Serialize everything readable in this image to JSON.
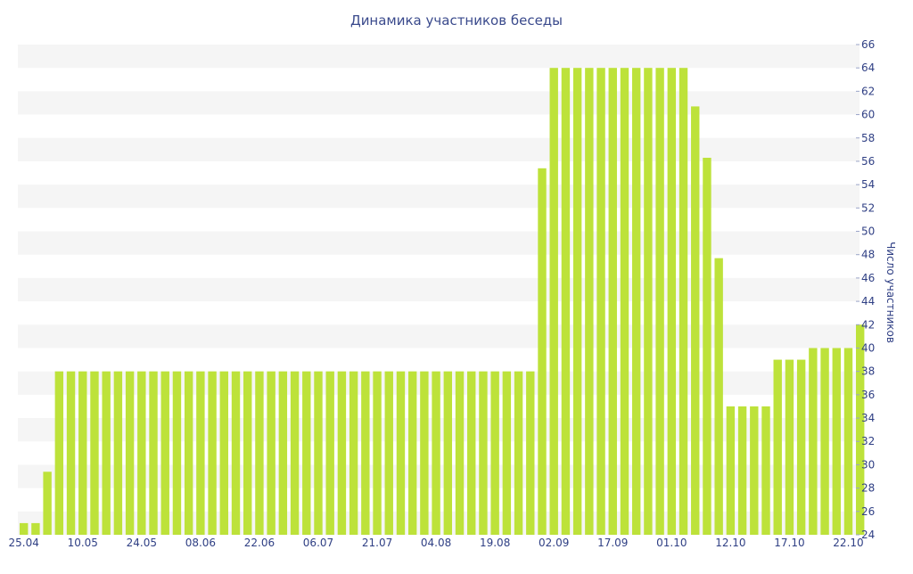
{
  "chart_data": {
    "type": "bar",
    "title": "Динамика участников беседы",
    "xlabel": "",
    "ylabel": "Число участников",
    "ylim": [
      24,
      66
    ],
    "y_ticks": [
      24,
      26,
      28,
      30,
      32,
      34,
      36,
      38,
      40,
      42,
      44,
      46,
      48,
      50,
      52,
      54,
      56,
      58,
      60,
      62,
      64,
      66
    ],
    "x_tick_labels": [
      "25.04",
      "10.05",
      "24.05",
      "08.06",
      "22.06",
      "06.07",
      "21.07",
      "04.08",
      "19.08",
      "02.09",
      "17.09",
      "01.10",
      "12.10",
      "17.10",
      "22.10"
    ],
    "grid": "horizontal alternating bands",
    "values": [
      25,
      25,
      29.4,
      38,
      38,
      38,
      38,
      38,
      38,
      38,
      38,
      38,
      38,
      38,
      38,
      38,
      38,
      38,
      38,
      38,
      38,
      38,
      38,
      38,
      38,
      38,
      38,
      38,
      38,
      38,
      38,
      38,
      38,
      38,
      38,
      38,
      38,
      38,
      38,
      38,
      38,
      38,
      38,
      38,
      55.4,
      64,
      64,
      64,
      64,
      64,
      64,
      64,
      64,
      64,
      64,
      64,
      64,
      60.7,
      56.3,
      47.7,
      35,
      35,
      35,
      35,
      39,
      39,
      39,
      40,
      40,
      40,
      40,
      42
    ],
    "colors": {
      "bar": "#bde23a",
      "band": "#f5f5f5",
      "text": "#2f3f84",
      "title": "#3a4a8c"
    }
  }
}
